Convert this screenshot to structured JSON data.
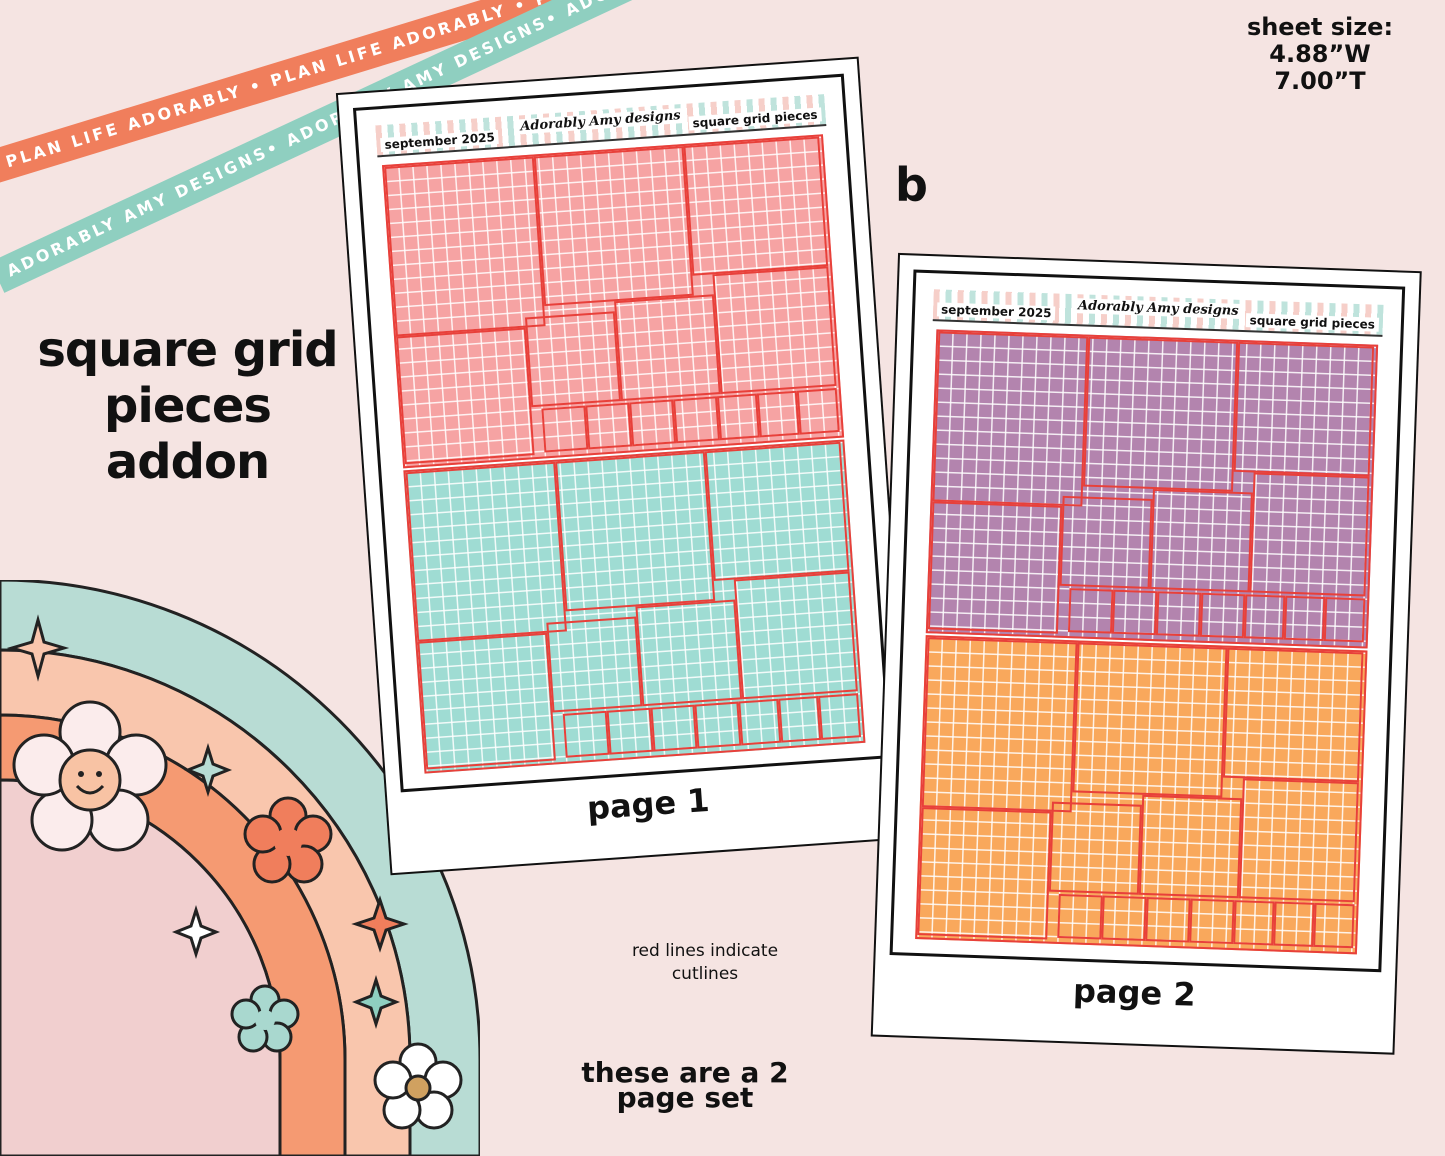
{
  "ribbons": {
    "orange_text": "PLAN LIFE ADORABLY • PLAN LIFE ADORABLY • PLAN LIFE ADORABLY",
    "teal_text": "ADORABLY AMY DESIGNS• ADORABLY AMY DESIGNS• ADORABLY AMY DESIGNS•"
  },
  "title": {
    "line1": "square grid",
    "line2": "pieces",
    "line3": "addon"
  },
  "sheet_size": {
    "label": "sheet size:",
    "width": "4.88”W",
    "height": "7.00”T"
  },
  "variant_letter": "b",
  "sheets": [
    {
      "date": "september 2025",
      "logo": "Adorably Amy designs",
      "name": "square grid pieces",
      "caption": "page 1",
      "colors": {
        "top": "#f6a3a3",
        "bottom": "#9fdcd3"
      }
    },
    {
      "date": "september 2025",
      "logo": "Adorably Amy designs",
      "name": "square grid pieces",
      "caption": "page 2",
      "colors": {
        "top": "#b384ae",
        "bottom": "#f9a85c"
      }
    }
  ],
  "notes": {
    "cutlines_line1": "red lines indicate",
    "cutlines_line2": "cutlines",
    "set_line1": "these are a 2",
    "set_line2": "page set"
  }
}
